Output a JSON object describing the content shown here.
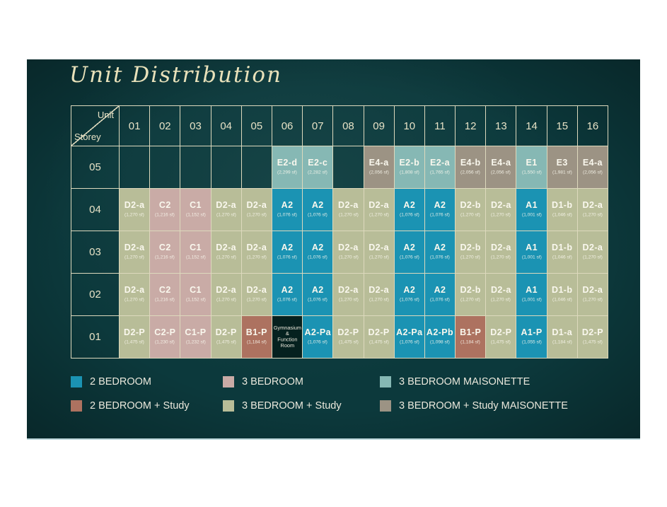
{
  "chart_data": {
    "type": "table",
    "title": "Unit Distribution",
    "corner_labels": {
      "top": "Unit",
      "bottom": "Storey"
    },
    "columns": [
      "01",
      "02",
      "03",
      "04",
      "05",
      "06",
      "07",
      "08",
      "09",
      "10",
      "11",
      "12",
      "13",
      "14",
      "15",
      "16"
    ],
    "unit_types_legend": [
      {
        "key": "2br",
        "label": "2 BEDROOM",
        "color": "#1b93b3"
      },
      {
        "key": "2brs",
        "label": "2 BEDROOM + Study",
        "color": "#ad7260"
      },
      {
        "key": "3br",
        "label": "3 BEDROOM",
        "color": "#c9aba6"
      },
      {
        "key": "3brs",
        "label": "3 BEDROOM + Study",
        "color": "#b8bd98"
      },
      {
        "key": "3brm",
        "label": "3 BEDROOM MAISONETTE",
        "color": "#86b8b4"
      },
      {
        "key": "3brsm",
        "label": "3 BEDROOM + Study MAISONETTE",
        "color": "#9c9384"
      }
    ],
    "rows": [
      {
        "storey": "05",
        "cells": [
          null,
          null,
          null,
          null,
          null,
          {
            "code": "E2-d",
            "area": "(2,299 sf)",
            "type": "3brm"
          },
          {
            "code": "E2-c",
            "area": "(2,282 sf)",
            "type": "3brm"
          },
          null,
          {
            "code": "E4-a",
            "area": "(2,056 sf)",
            "type": "3brsm"
          },
          {
            "code": "E2-b",
            "area": "(1,808 sf)",
            "type": "3brm"
          },
          {
            "code": "E2-a",
            "area": "(1,765 sf)",
            "type": "3brm"
          },
          {
            "code": "E4-b",
            "area": "(2,056 sf)",
            "type": "3brsm"
          },
          {
            "code": "E4-a",
            "area": "(2,056 sf)",
            "type": "3brsm"
          },
          {
            "code": "E1",
            "area": "(1,550 sf)",
            "type": "3brm"
          },
          {
            "code": "E3",
            "area": "(1,981 sf)",
            "type": "3brsm"
          },
          {
            "code": "E4-a",
            "area": "(2,056 sf)",
            "type": "3brsm"
          }
        ]
      },
      {
        "storey": "04",
        "cells": [
          {
            "code": "D2-a",
            "area": "(1,270 sf)",
            "type": "3brs"
          },
          {
            "code": "C2",
            "area": "(1,216 sf)",
            "type": "3br"
          },
          {
            "code": "C1",
            "area": "(1,152 sf)",
            "type": "3br"
          },
          {
            "code": "D2-a",
            "area": "(1,270 sf)",
            "type": "3brs"
          },
          {
            "code": "D2-a",
            "area": "(1,270 sf)",
            "type": "3brs"
          },
          {
            "code": "A2",
            "area": "(1,076 sf)",
            "type": "2br"
          },
          {
            "code": "A2",
            "area": "(1,076 sf)",
            "type": "2br"
          },
          {
            "code": "D2-a",
            "area": "(1,270 sf)",
            "type": "3brs"
          },
          {
            "code": "D2-a",
            "area": "(1,270 sf)",
            "type": "3brs"
          },
          {
            "code": "A2",
            "area": "(1,076 sf)",
            "type": "2br"
          },
          {
            "code": "A2",
            "area": "(1,076 sf)",
            "type": "2br"
          },
          {
            "code": "D2-b",
            "area": "(1,270 sf)",
            "type": "3brs"
          },
          {
            "code": "D2-a",
            "area": "(1,270 sf)",
            "type": "3brs"
          },
          {
            "code": "A1",
            "area": "(1,001 sf)",
            "type": "2br"
          },
          {
            "code": "D1-b",
            "area": "(1,046 sf)",
            "type": "3brs"
          },
          {
            "code": "D2-a",
            "area": "(1,270 sf)",
            "type": "3brs"
          }
        ]
      },
      {
        "storey": "03",
        "cells": [
          {
            "code": "D2-a",
            "area": "(1,270 sf)",
            "type": "3brs"
          },
          {
            "code": "C2",
            "area": "(1,216 sf)",
            "type": "3br"
          },
          {
            "code": "C1",
            "area": "(1,152 sf)",
            "type": "3br"
          },
          {
            "code": "D2-a",
            "area": "(1,270 sf)",
            "type": "3brs"
          },
          {
            "code": "D2-a",
            "area": "(1,270 sf)",
            "type": "3brs"
          },
          {
            "code": "A2",
            "area": "(1,076 sf)",
            "type": "2br"
          },
          {
            "code": "A2",
            "area": "(1,076 sf)",
            "type": "2br"
          },
          {
            "code": "D2-a",
            "area": "(1,270 sf)",
            "type": "3brs"
          },
          {
            "code": "D2-a",
            "area": "(1,270 sf)",
            "type": "3brs"
          },
          {
            "code": "A2",
            "area": "(1,076 sf)",
            "type": "2br"
          },
          {
            "code": "A2",
            "area": "(1,076 sf)",
            "type": "2br"
          },
          {
            "code": "D2-b",
            "area": "(1,270 sf)",
            "type": "3brs"
          },
          {
            "code": "D2-a",
            "area": "(1,270 sf)",
            "type": "3brs"
          },
          {
            "code": "A1",
            "area": "(1,001 sf)",
            "type": "2br"
          },
          {
            "code": "D1-b",
            "area": "(1,046 sf)",
            "type": "3brs"
          },
          {
            "code": "D2-a",
            "area": "(1,270 sf)",
            "type": "3brs"
          }
        ]
      },
      {
        "storey": "02",
        "cells": [
          {
            "code": "D2-a",
            "area": "(1,270 sf)",
            "type": "3brs"
          },
          {
            "code": "C2",
            "area": "(1,216 sf)",
            "type": "3br"
          },
          {
            "code": "C1",
            "area": "(1,152 sf)",
            "type": "3br"
          },
          {
            "code": "D2-a",
            "area": "(1,270 sf)",
            "type": "3brs"
          },
          {
            "code": "D2-a",
            "area": "(1,270 sf)",
            "type": "3brs"
          },
          {
            "code": "A2",
            "area": "(1,076 sf)",
            "type": "2br"
          },
          {
            "code": "A2",
            "area": "(1,076 sf)",
            "type": "2br"
          },
          {
            "code": "D2-a",
            "area": "(1,270 sf)",
            "type": "3brs"
          },
          {
            "code": "D2-a",
            "area": "(1,270 sf)",
            "type": "3brs"
          },
          {
            "code": "A2",
            "area": "(1,076 sf)",
            "type": "2br"
          },
          {
            "code": "A2",
            "area": "(1,076 sf)",
            "type": "2br"
          },
          {
            "code": "D2-b",
            "area": "(1,270 sf)",
            "type": "3brs"
          },
          {
            "code": "D2-a",
            "area": "(1,270 sf)",
            "type": "3brs"
          },
          {
            "code": "A1",
            "area": "(1,001 sf)",
            "type": "2br"
          },
          {
            "code": "D1-b",
            "area": "(1,046 sf)",
            "type": "3brs"
          },
          {
            "code": "D2-a",
            "area": "(1,270 sf)",
            "type": "3brs"
          }
        ]
      },
      {
        "storey": "01",
        "cells": [
          {
            "code": "D2-P",
            "area": "(1,475 sf)",
            "type": "3brs"
          },
          {
            "code": "C2-P",
            "area": "(1,230 sf)",
            "type": "3br"
          },
          {
            "code": "C1-P",
            "area": "(1,232 sf)",
            "type": "3br"
          },
          {
            "code": "D2-P",
            "area": "(1,475 sf)",
            "type": "3brs"
          },
          {
            "code": "B1-P",
            "area": "(1,184 sf)",
            "type": "2brs"
          },
          {
            "label": "Gymnasium & Function Room",
            "lines": [
              "Gymnasium",
              "&",
              "Function",
              "Room"
            ],
            "type": "facility"
          },
          {
            "code": "A2-Pa",
            "area": "(1,076 sf)",
            "type": "2br"
          },
          {
            "code": "D2-P",
            "area": "(1,475 sf)",
            "type": "3brs"
          },
          {
            "code": "D2-P",
            "area": "(1,475 sf)",
            "type": "3brs"
          },
          {
            "code": "A2-Pa",
            "area": "(1,076 sf)",
            "type": "2br"
          },
          {
            "code": "A2-Pb",
            "area": "(1,098 sf)",
            "type": "2br"
          },
          {
            "code": "B1-P",
            "area": "(1,184 sf)",
            "type": "2brs"
          },
          {
            "code": "D2-P",
            "area": "(1,475 sf)",
            "type": "3brs"
          },
          {
            "code": "A1-P",
            "area": "(1,055 sf)",
            "type": "2br"
          },
          {
            "code": "D1-a",
            "area": "(1,184 sf)",
            "type": "3brs"
          },
          {
            "code": "D2-P",
            "area": "(1,475 sf)",
            "type": "3brs"
          }
        ]
      }
    ]
  },
  "colors": {
    "panel_background": "#0c393c",
    "title": "#e8e1ba",
    "grid_line": "#ddd9bd",
    "cell_text": "#faf8ee",
    "facility_background": "#05211f",
    "legend_text": "#eae8dc"
  }
}
